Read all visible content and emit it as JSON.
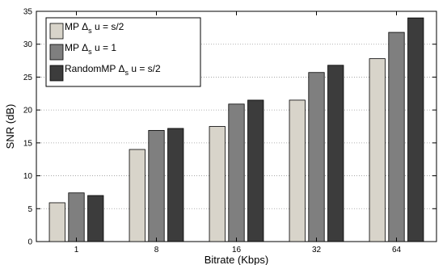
{
  "chart_data": {
    "type": "bar",
    "title": "",
    "xlabel": "Bitrate (Kbps)",
    "ylabel": "SNR (dB)",
    "categories": [
      "1",
      "8",
      "16",
      "32",
      "64"
    ],
    "ylim": [
      0,
      35
    ],
    "yticks": [
      0,
      5,
      10,
      15,
      20,
      25,
      30,
      35
    ],
    "grid": "y-dotted",
    "legend_position": "top-left",
    "series": [
      {
        "name": "MP Δs u = s/2",
        "legend": {
          "pre": "MP Δ",
          "sub": "s",
          "post": " u = s/2"
        },
        "color": "#d8d4ca",
        "values": [
          5.9,
          14.0,
          17.5,
          21.5,
          27.8
        ]
      },
      {
        "name": "MP Δs u = 1",
        "legend": {
          "pre": "MP Δ",
          "sub": "s",
          "post": " u = 1"
        },
        "color": "#7f7f7f",
        "values": [
          7.4,
          16.9,
          20.9,
          25.7,
          31.8
        ]
      },
      {
        "name": "RandomMP Δs u = s/2",
        "legend": {
          "pre": "RandomMP Δ",
          "sub": "s",
          "post": " u = s/2"
        },
        "color": "#3c3c3c",
        "values": [
          7.0,
          17.2,
          21.5,
          26.8,
          34.0
        ]
      }
    ]
  }
}
